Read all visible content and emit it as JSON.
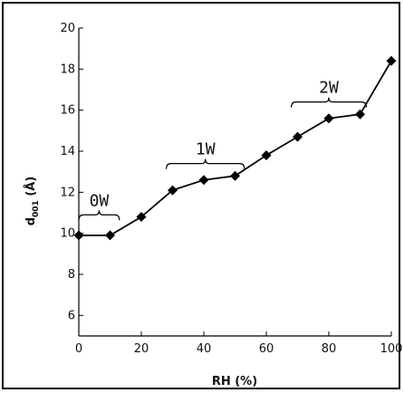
{
  "chart_data": {
    "type": "line",
    "xlabel": "RH (%)",
    "ylabel_main": "d",
    "ylabel_sub": "001",
    "ylabel_tail": " (Å)",
    "xlim": [
      0,
      100
    ],
    "ylim": [
      5,
      20
    ],
    "xticks": [
      0,
      20,
      40,
      60,
      80,
      100
    ],
    "yticks": [
      6,
      8,
      10,
      12,
      14,
      16,
      18,
      20
    ],
    "grid": false,
    "legend": "none",
    "marker": "diamond",
    "color": "#000000",
    "series": [
      {
        "x": [
          0,
          10,
          20,
          30,
          40,
          50,
          60,
          70,
          80,
          90,
          100
        ],
        "y": [
          9.9,
          9.9,
          10.8,
          12.1,
          12.6,
          12.8,
          13.8,
          14.7,
          15.6,
          15.8,
          18.4
        ]
      }
    ],
    "annotations": [
      {
        "text": "0W",
        "x_range": [
          0,
          13
        ],
        "y": 10.9
      },
      {
        "text": "1W",
        "x_range": [
          28,
          53
        ],
        "y": 13.4
      },
      {
        "text": "2W",
        "x_range": [
          68,
          92
        ],
        "y": 16.4
      }
    ]
  }
}
